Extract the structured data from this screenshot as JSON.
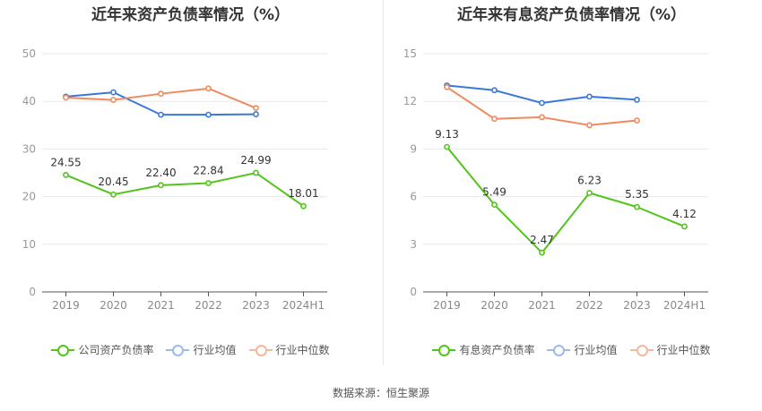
{
  "chart_data": [
    {
      "type": "line",
      "title": "近年来资产负债率情况（%）",
      "categories": [
        "2019",
        "2020",
        "2021",
        "2022",
        "2023",
        "2024H1"
      ],
      "yticks": [
        "0",
        "10",
        "20",
        "30",
        "40",
        "50"
      ],
      "ylim": [
        0,
        50
      ],
      "grid": true,
      "legend_position": "bottom",
      "series": [
        {
          "name": "公司资产负债率",
          "color": "#52c41a",
          "values": [
            24.55,
            20.45,
            22.4,
            22.84,
            24.99,
            18.01
          ],
          "labels": [
            "24.55",
            "20.45",
            "22.40",
            "22.84",
            "24.99",
            "18.01"
          ]
        },
        {
          "name": "行业均值",
          "color": "#3a78d8",
          "values": [
            41.0,
            41.9,
            37.2,
            37.2,
            37.3,
            null
          ]
        },
        {
          "name": "行业中位数",
          "color": "#f08a5d",
          "values": [
            40.8,
            40.3,
            41.6,
            42.7,
            38.6,
            null
          ]
        }
      ]
    },
    {
      "type": "line",
      "title": "近年来有息资产负债率情况（%）",
      "categories": [
        "2019",
        "2020",
        "2021",
        "2022",
        "2023",
        "2024H1"
      ],
      "yticks": [
        "0",
        "3",
        "6",
        "9",
        "12",
        "15"
      ],
      "ylim": [
        0,
        15
      ],
      "grid": true,
      "legend_position": "bottom",
      "series": [
        {
          "name": "有息资产负债率",
          "color": "#52c41a",
          "values": [
            9.13,
            5.49,
            2.47,
            6.23,
            5.35,
            4.12
          ],
          "labels": [
            "9.13",
            "5.49",
            "2.47",
            "6.23",
            "5.35",
            "4.12"
          ]
        },
        {
          "name": "行业均值",
          "color": "#3a78d8",
          "values": [
            13.0,
            12.7,
            11.9,
            12.3,
            12.1,
            null
          ]
        },
        {
          "name": "行业中位数",
          "color": "#f08a5d",
          "values": [
            12.9,
            10.9,
            11.0,
            10.5,
            10.8,
            null
          ]
        }
      ]
    }
  ],
  "source_text": "数据来源：恒生聚源"
}
